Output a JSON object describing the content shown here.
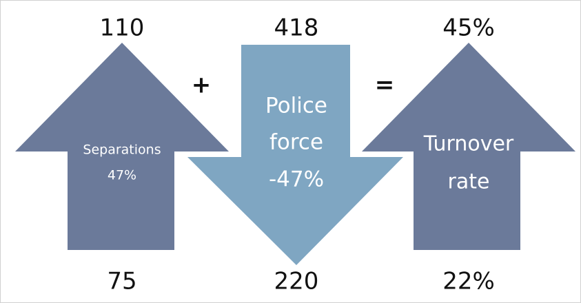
{
  "arrows": [
    {
      "top": "110",
      "bottom": "75",
      "label": [
        "Separations",
        "47%"
      ]
    },
    {
      "top": "418",
      "bottom": "220",
      "label": [
        "Police",
        "force",
        "-47%"
      ]
    },
    {
      "top": "45%",
      "bottom": "22%",
      "label": [
        "Turnover",
        "rate"
      ]
    }
  ],
  "operators": [
    "+",
    "="
  ]
}
